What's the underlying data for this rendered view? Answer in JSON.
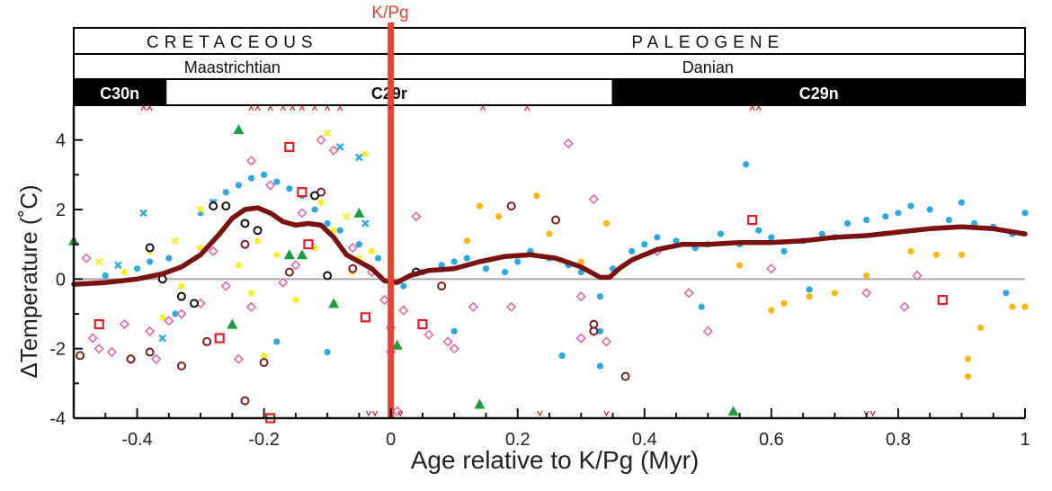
{
  "chart_data": {
    "type": "scatter",
    "title": "",
    "xlabel": "Age relative to K/Pg (Myr)",
    "ylabel": "ΔTemperature (˚C)",
    "xlim": [
      -0.5,
      1.0
    ],
    "ylim": [
      -4,
      5
    ],
    "xticks": [
      -0.4,
      -0.2,
      0,
      0.2,
      0.4,
      0.6,
      0.8,
      1
    ],
    "xtick_labels": [
      "-0.4",
      "-0.2",
      "0",
      "0.2",
      "0.4",
      "0.6",
      "0.8",
      "1"
    ],
    "yticks": [
      -4,
      -2,
      0,
      2,
      4
    ],
    "ytick_labels": [
      "-4",
      "-2",
      "0",
      "2",
      "4"
    ],
    "boundary": {
      "label": "K/Pg",
      "x": 0,
      "color": "#e8432e"
    },
    "periods": [
      {
        "label": "CRETACEOUS",
        "from": -0.5,
        "to": 0
      },
      {
        "label": "PALEOGENE",
        "from": 0,
        "to": 1.0
      }
    ],
    "stages": [
      {
        "label": "Maastrichtian",
        "from": -0.5,
        "to": 0
      },
      {
        "label": "Danian",
        "from": 0,
        "to": 1.0
      }
    ],
    "chrons": [
      {
        "label": "C30n",
        "from": -0.5,
        "to": -0.355,
        "fill": "#000000"
      },
      {
        "label": "C29r",
        "from": -0.355,
        "to": 0.35,
        "fill": "#ffffff"
      },
      {
        "label": "C29n",
        "from": 0.35,
        "to": 1.0,
        "fill": "#000000"
      }
    ],
    "series": [
      {
        "name": "record 1",
        "marker": "dot",
        "color": "#29abe2",
        "points": [
          [
            -0.3,
            1.9
          ],
          [
            -0.28,
            2.2
          ],
          [
            -0.26,
            2.5
          ],
          [
            -0.24,
            2.7
          ],
          [
            -0.22,
            2.9
          ],
          [
            -0.2,
            3.0
          ],
          [
            -0.18,
            2.8
          ],
          [
            -0.16,
            2.6
          ],
          [
            -0.14,
            2.4
          ],
          [
            -0.12,
            2.0
          ],
          [
            -0.1,
            1.6
          ],
          [
            -0.08,
            1.4
          ],
          [
            -0.05,
            1.0
          ],
          [
            -0.02,
            0.6
          ],
          [
            0.0,
            0.3
          ],
          [
            0.02,
            -0.2
          ],
          [
            0.05,
            0.2
          ],
          [
            0.08,
            0.4
          ],
          [
            0.1,
            0.5
          ],
          [
            0.12,
            0.6
          ],
          [
            0.15,
            0.3
          ],
          [
            0.18,
            0.2
          ],
          [
            0.2,
            0.5
          ],
          [
            0.22,
            0.8
          ],
          [
            0.25,
            0.6
          ],
          [
            0.28,
            0.4
          ],
          [
            0.3,
            0.2
          ],
          [
            0.33,
            -0.5
          ],
          [
            0.33,
            -1.5
          ],
          [
            0.33,
            -2.5
          ],
          [
            0.35,
            0.3
          ],
          [
            0.38,
            0.8
          ],
          [
            0.4,
            1.0
          ],
          [
            0.42,
            1.2
          ],
          [
            0.45,
            1.1
          ],
          [
            0.48,
            0.9
          ],
          [
            0.5,
            1.0
          ],
          [
            0.52,
            1.3
          ],
          [
            0.55,
            1.0
          ],
          [
            0.58,
            1.4
          ],
          [
            0.6,
            1.2
          ],
          [
            0.62,
            0.8
          ],
          [
            0.65,
            1.1
          ],
          [
            0.68,
            1.3
          ],
          [
            0.7,
            1.2
          ],
          [
            0.72,
            1.6
          ],
          [
            0.75,
            1.7
          ],
          [
            0.78,
            1.8
          ],
          [
            0.8,
            1.9
          ],
          [
            0.82,
            2.1
          ],
          [
            0.85,
            2.0
          ],
          [
            0.88,
            1.7
          ],
          [
            0.9,
            2.2
          ],
          [
            0.92,
            1.6
          ],
          [
            0.95,
            1.5
          ],
          [
            0.98,
            1.3
          ],
          [
            1.0,
            1.9
          ],
          [
            0.56,
            3.3
          ],
          [
            -0.45,
            0.1
          ],
          [
            -0.4,
            0.3
          ],
          [
            -0.38,
            0.5
          ],
          [
            -0.35,
            0.6
          ],
          [
            -0.34,
            -1.0
          ],
          [
            -0.18,
            -1.8
          ],
          [
            -0.1,
            -2.1
          ],
          [
            0.1,
            -1.5
          ],
          [
            0.27,
            -2.2
          ],
          [
            0.49,
            -0.8
          ],
          [
            0.66,
            -0.3
          ],
          [
            0.97,
            -0.4
          ]
        ]
      },
      {
        "name": "record 2",
        "marker": "dot",
        "color": "#f7ee2f",
        "points": [
          [
            -0.42,
            0.2
          ],
          [
            -0.38,
            0.8
          ],
          [
            -0.33,
            -0.2
          ],
          [
            -0.3,
            0.9
          ],
          [
            -0.27,
            1.3
          ],
          [
            -0.24,
            0.4
          ],
          [
            -0.21,
            1.1
          ],
          [
            -0.18,
            0.7
          ],
          [
            -0.15,
            -0.6
          ],
          [
            -0.12,
            0.9
          ],
          [
            -0.09,
            1.4
          ],
          [
            -0.06,
            0.2
          ],
          [
            -0.04,
            3.6
          ],
          [
            -0.03,
            0.8
          ],
          [
            -0.11,
            2.2
          ],
          [
            -0.22,
            -0.4
          ],
          [
            -0.36,
            -1.1
          ],
          [
            -0.2,
            -2.2
          ]
        ]
      },
      {
        "name": "record 3",
        "marker": "dot",
        "color": "#fbb913",
        "points": [
          [
            0.12,
            1.1
          ],
          [
            0.14,
            2.1
          ],
          [
            0.17,
            1.8
          ],
          [
            0.23,
            2.4
          ],
          [
            0.25,
            1.3
          ],
          [
            0.3,
            0.5
          ],
          [
            0.34,
            1.6
          ],
          [
            0.55,
            0.4
          ],
          [
            0.6,
            -0.9
          ],
          [
            0.62,
            -0.7
          ],
          [
            0.66,
            -0.5
          ],
          [
            0.7,
            -0.4
          ],
          [
            0.75,
            0.1
          ],
          [
            0.82,
            0.8
          ],
          [
            0.86,
            0.7
          ],
          [
            0.9,
            0.7
          ],
          [
            0.91,
            -2.3
          ],
          [
            0.91,
            -2.8
          ],
          [
            0.93,
            -1.4
          ],
          [
            0.98,
            -0.8
          ],
          [
            1.0,
            -0.8
          ]
        ]
      },
      {
        "name": "record 4",
        "marker": "cross",
        "color": "#29abe2",
        "points": [
          [
            -0.43,
            0.4
          ],
          [
            -0.39,
            1.9
          ],
          [
            -0.36,
            -1.7
          ],
          [
            -0.28,
            2.2
          ],
          [
            -0.08,
            3.8
          ],
          [
            -0.05,
            3.5
          ],
          [
            -0.04,
            1.6
          ]
        ]
      },
      {
        "name": "record 5",
        "marker": "cross",
        "color": "#f7ee2f",
        "points": [
          [
            -0.46,
            0.5
          ],
          [
            -0.34,
            1.1
          ],
          [
            -0.3,
            2.0
          ],
          [
            -0.1,
            4.2
          ],
          [
            -0.07,
            1.8
          ],
          [
            -0.05,
            0.6
          ]
        ]
      },
      {
        "name": "record 6",
        "marker": "diamond-open",
        "color": "#e667a8",
        "points": [
          [
            -0.48,
            0.6
          ],
          [
            -0.47,
            -1.7
          ],
          [
            -0.46,
            -2.0
          ],
          [
            -0.44,
            -2.1
          ],
          [
            -0.42,
            -1.3
          ],
          [
            -0.41,
            -2.3
          ],
          [
            -0.38,
            -1.5
          ],
          [
            -0.37,
            -2.3
          ],
          [
            -0.35,
            -1.2
          ],
          [
            -0.33,
            -1.0
          ],
          [
            -0.3,
            -0.7
          ],
          [
            -0.28,
            0.8
          ],
          [
            -0.26,
            -0.2
          ],
          [
            -0.24,
            -2.3
          ],
          [
            -0.22,
            -0.8
          ],
          [
            -0.19,
            2.7
          ],
          [
            -0.17,
            -0.1
          ],
          [
            -0.15,
            0.4
          ],
          [
            -0.11,
            4.0
          ],
          [
            -0.09,
            3.7
          ],
          [
            -0.06,
            0.9
          ],
          [
            -0.03,
            0.2
          ],
          [
            -0.01,
            -0.6
          ],
          [
            0.0,
            -1.4
          ],
          [
            0.0,
            -2.1
          ],
          [
            0.01,
            -3.8
          ],
          [
            0.02,
            -0.9
          ],
          [
            0.04,
            1.8
          ],
          [
            0.06,
            -1.6
          ],
          [
            0.09,
            -1.8
          ],
          [
            0.1,
            -2.0
          ],
          [
            0.13,
            -0.8
          ],
          [
            0.19,
            -0.8
          ],
          [
            0.28,
            3.9
          ],
          [
            0.3,
            -1.7
          ],
          [
            0.3,
            -0.5
          ],
          [
            0.32,
            2.3
          ],
          [
            0.34,
            -1.8
          ],
          [
            0.42,
            0.8
          ],
          [
            0.47,
            -0.4
          ],
          [
            0.5,
            -1.5
          ],
          [
            0.6,
            0.3
          ],
          [
            0.75,
            -0.4
          ],
          [
            0.81,
            -0.8
          ],
          [
            0.83,
            0.1
          ],
          [
            -0.22,
            3.4
          ],
          [
            -0.14,
            1.9
          ]
        ]
      },
      {
        "name": "record 7",
        "marker": "square-open",
        "color": "#e31e24",
        "points": [
          [
            -0.46,
            -1.3
          ],
          [
            -0.27,
            -1.7
          ],
          [
            -0.16,
            3.8
          ],
          [
            -0.14,
            2.5
          ],
          [
            -0.13,
            1.0
          ],
          [
            -0.04,
            -1.1
          ],
          [
            0.05,
            -1.3
          ],
          [
            0.57,
            1.7
          ],
          [
            0.87,
            -0.6
          ],
          [
            -0.19,
            -4.0
          ]
        ]
      },
      {
        "name": "record 8",
        "marker": "triangle",
        "color": "#1a9e3f",
        "points": [
          [
            -0.5,
            1.1
          ],
          [
            -0.24,
            4.3
          ],
          [
            -0.25,
            -1.3
          ],
          [
            -0.16,
            0.7
          ],
          [
            -0.14,
            0.7
          ],
          [
            -0.09,
            -0.7
          ],
          [
            -0.05,
            1.9
          ],
          [
            0.01,
            -1.9
          ],
          [
            0.14,
            -3.6
          ],
          [
            0.54,
            -3.8
          ]
        ]
      },
      {
        "name": "record 9",
        "marker": "circle-open",
        "color": "#7b1f1f",
        "points": [
          [
            -0.49,
            -2.2
          ],
          [
            -0.41,
            -2.3
          ],
          [
            -0.38,
            -2.1
          ],
          [
            -0.33,
            -2.5
          ],
          [
            -0.29,
            -1.8
          ],
          [
            -0.23,
            -3.5
          ],
          [
            -0.23,
            1.0
          ],
          [
            -0.2,
            -2.4
          ],
          [
            -0.16,
            0.2
          ],
          [
            -0.11,
            2.5
          ],
          [
            -0.06,
            0.3
          ],
          [
            0.08,
            -0.2
          ],
          [
            0.19,
            2.1
          ],
          [
            0.26,
            1.7
          ],
          [
            0.32,
            -1.3
          ],
          [
            0.32,
            -1.5
          ],
          [
            0.37,
            -2.8
          ]
        ]
      },
      {
        "name": "record 10",
        "marker": "circle-open",
        "color": "#111111",
        "points": [
          [
            -0.38,
            0.9
          ],
          [
            -0.36,
            0.0
          ],
          [
            -0.33,
            -0.5
          ],
          [
            -0.31,
            -0.7
          ],
          [
            -0.28,
            2.1
          ],
          [
            -0.26,
            2.1
          ],
          [
            -0.23,
            1.6
          ],
          [
            -0.21,
            1.4
          ],
          [
            -0.12,
            2.4
          ],
          [
            -0.1,
            0.1
          ],
          [
            0.04,
            0.2
          ]
        ]
      }
    ],
    "trend": {
      "name": "smoothed trend",
      "color": "#7a1212",
      "x": [
        -0.5,
        -0.45,
        -0.4,
        -0.36,
        -0.33,
        -0.3,
        -0.27,
        -0.25,
        -0.23,
        -0.21,
        -0.19,
        -0.17,
        -0.15,
        -0.13,
        -0.11,
        -0.09,
        -0.07,
        -0.05,
        -0.03,
        -0.01,
        0.01,
        0.03,
        0.06,
        0.1,
        0.14,
        0.18,
        0.22,
        0.26,
        0.3,
        0.33,
        0.345,
        0.36,
        0.38,
        0.42,
        0.46,
        0.5,
        0.55,
        0.6,
        0.65,
        0.7,
        0.75,
        0.8,
        0.85,
        0.9,
        0.95,
        1.0
      ],
      "y": [
        -0.15,
        -0.1,
        0.0,
        0.15,
        0.35,
        0.7,
        1.3,
        1.75,
        2.0,
        2.05,
        1.9,
        1.65,
        1.55,
        1.6,
        1.55,
        1.2,
        0.7,
        0.5,
        0.3,
        -0.05,
        -0.1,
        0.1,
        0.25,
        0.3,
        0.5,
        0.65,
        0.7,
        0.6,
        0.35,
        0.05,
        0.05,
        0.3,
        0.55,
        0.85,
        1.0,
        1.0,
        1.05,
        1.05,
        1.1,
        1.2,
        1.25,
        1.35,
        1.45,
        1.5,
        1.45,
        1.3
      ]
    },
    "zero_line_color": "#a8a8a8",
    "rug_color": "#e31e24",
    "rug_top": [
      -0.39,
      -0.38,
      -0.22,
      -0.21,
      -0.19,
      -0.17,
      -0.155,
      -0.14,
      -0.12,
      -0.1,
      -0.08,
      0.0,
      0.145,
      0.215,
      0.57,
      0.58
    ],
    "rug_bottom": [
      -0.035,
      -0.025,
      0.015,
      0.235,
      0.34,
      0.75,
      0.76
    ]
  }
}
